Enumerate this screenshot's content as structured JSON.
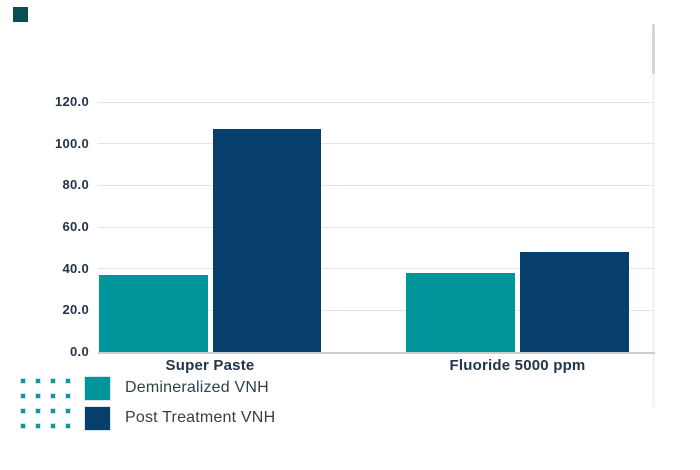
{
  "chart_data": {
    "type": "bar",
    "categories": [
      "Super Paste",
      "Fluoride 5000 ppm"
    ],
    "series": [
      {
        "name": "Demineralized VNH",
        "color": "#00959B",
        "values": [
          37,
          38
        ]
      },
      {
        "name": "Post Treatment VNH",
        "color": "#073F6C",
        "values": [
          107,
          48
        ]
      }
    ],
    "title": "",
    "xlabel": "",
    "ylabel": "",
    "ylim": [
      0,
      120
    ],
    "ytick_step": 20,
    "ytick_labels": [
      "0.0",
      "20.0",
      "40.0",
      "60.0",
      "80.0",
      "100.0",
      "120.0"
    ],
    "grid": "horizontal",
    "legend_position": "bottom-left"
  },
  "legend": {
    "items": [
      {
        "label": "Demineralized VNH",
        "color": "#00959B"
      },
      {
        "label": "Post Treatment VNH",
        "color": "#073F6C"
      }
    ]
  },
  "colors": {
    "background": "#FFFFFF",
    "axis_text": "#22354A",
    "legend_text": "#333F4B",
    "gridline": "#E5E5E5",
    "baseline": "#C9CED3",
    "corner_square": "#0D4E55",
    "dot": "#12969C",
    "scrollbar_track": "#F4F4F4",
    "scrollbar_thumb": "#D7D7D7"
  }
}
